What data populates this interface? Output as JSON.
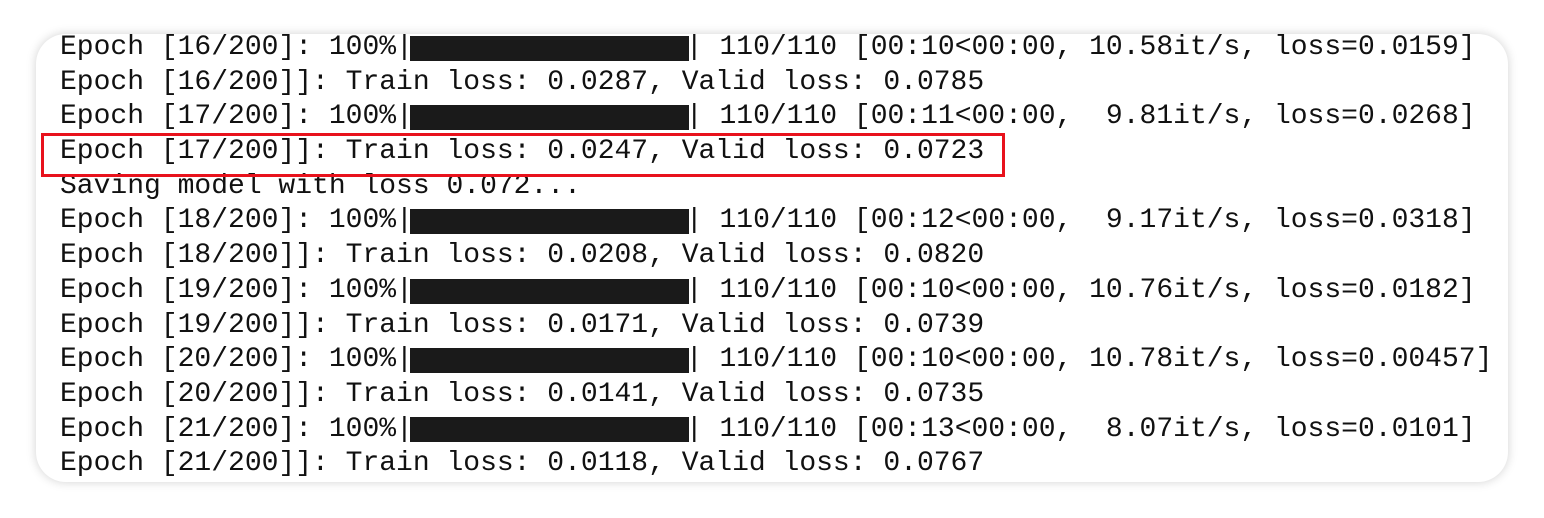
{
  "lines": [
    {
      "left": "Epoch [16/200]: 100%|",
      "right": "| 110/110 [00:10<00:00, 10.58it/s, loss=0.0159]"
    },
    {
      "text": "Epoch [16/200]]: Train loss: 0.0287, Valid loss: 0.0785"
    },
    {
      "left": "Epoch [17/200]: 100%|",
      "right": "| 110/110 [00:11<00:00,  9.81it/s, loss=0.0268]"
    },
    {
      "text": "Epoch [17/200]]: Train loss: 0.0247, Valid loss: 0.0723"
    },
    {
      "text": "Saving model with loss 0.072..."
    },
    {
      "left": "Epoch [18/200]: 100%|",
      "right": "| 110/110 [00:12<00:00,  9.17it/s, loss=0.0318]"
    },
    {
      "text": "Epoch [18/200]]: Train loss: 0.0208, Valid loss: 0.0820"
    },
    {
      "left": "Epoch [19/200]: 100%|",
      "right": "| 110/110 [00:10<00:00, 10.76it/s, loss=0.0182]"
    },
    {
      "text": "Epoch [19/200]]: Train loss: 0.0171, Valid loss: 0.0739"
    },
    {
      "left": "Epoch [20/200]: 100%|",
      "right": "| 110/110 [00:10<00:00, 10.78it/s, loss=0.00457]"
    },
    {
      "text": "Epoch [20/200]]: Train loss: 0.0141, Valid loss: 0.0735"
    },
    {
      "left": "Epoch [21/200]: 100%|",
      "right": "| 110/110 [00:13<00:00,  8.07it/s, loss=0.0101]"
    },
    {
      "text": "Epoch [21/200]]: Train loss: 0.0118, Valid loss: 0.0767"
    }
  ]
}
